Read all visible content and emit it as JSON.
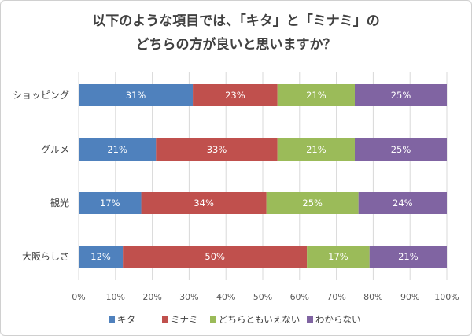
{
  "chart_data": {
    "type": "bar",
    "orientation": "horizontal",
    "stacked": true,
    "title_lines": [
      "以下のような項目では、「キタ」と「ミナミ」の",
      "どちらの方が良いと思いますか？"
    ],
    "categories": [
      "ショッピング",
      "グルメ",
      "観光",
      "大阪らしさ"
    ],
    "series": [
      {
        "name": "キタ",
        "color": "#4f81bd",
        "values": [
          31,
          21,
          17,
          12
        ],
        "labels": [
          "31%",
          "21%",
          "17%",
          "12%"
        ]
      },
      {
        "name": "ミナミ",
        "color": "#c0504d",
        "values": [
          23,
          33,
          34,
          50
        ],
        "labels": [
          "23%",
          "33%",
          "34%",
          "50%"
        ]
      },
      {
        "name": "どちらともいえない",
        "color": "#9bbb59",
        "values": [
          21,
          21,
          25,
          17
        ],
        "labels": [
          "21%",
          "21%",
          "25%",
          "17%"
        ]
      },
      {
        "name": "わからない",
        "color": "#8064a2",
        "values": [
          25,
          25,
          24,
          21
        ],
        "labels": [
          "25%",
          "25%",
          "24%",
          "21%"
        ]
      }
    ],
    "xlim": [
      0,
      100
    ],
    "xticks": [
      0,
      10,
      20,
      30,
      40,
      50,
      60,
      70,
      80,
      90,
      100
    ],
    "xtick_labels": [
      "0%",
      "10%",
      "20%",
      "30%",
      "40%",
      "50%",
      "60%",
      "70%",
      "80%",
      "90%",
      "100%"
    ],
    "grid": "vertical",
    "gridline_color": "#d9d9d9",
    "legend_position": "bottom"
  }
}
